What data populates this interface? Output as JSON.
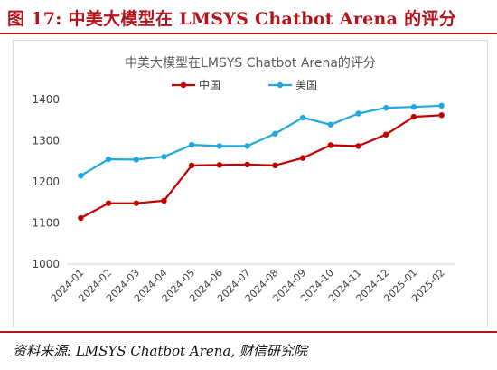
{
  "figure": {
    "title": "图 17:  中美大模型在 LMSYS Chatbot Arena 的评分",
    "source": "资料来源:  LMSYS Chatbot Arena,  财信研究院"
  },
  "chart_data": {
    "type": "line",
    "title": "中美大模型在LMSYS Chatbot Arena的评分",
    "xlabel": "",
    "ylabel": "",
    "categories": [
      "2024-01",
      "2024-02",
      "2024-03",
      "2024-04",
      "2024-05",
      "2024-06",
      "2024-07",
      "2024-08",
      "2024-09",
      "2024-10",
      "2024-11",
      "2024-12",
      "2025-01",
      "2025-02"
    ],
    "ylim": [
      1000,
      1400
    ],
    "yticks": [
      1000,
      1100,
      1200,
      1300,
      1400
    ],
    "grid": false,
    "legend_position": "top-center",
    "series": [
      {
        "name": "中国",
        "color": "#c00000",
        "values": [
          1112,
          1148,
          1148,
          1154,
          1240,
          1241,
          1242,
          1240,
          1258,
          1289,
          1287,
          1315,
          1358,
          1362
        ]
      },
      {
        "name": "美国",
        "color": "#1fa8e0",
        "values": [
          1215,
          1255,
          1254,
          1261,
          1290,
          1287,
          1287,
          1317,
          1356,
          1339,
          1366,
          1380,
          1382,
          1385
        ]
      }
    ]
  }
}
